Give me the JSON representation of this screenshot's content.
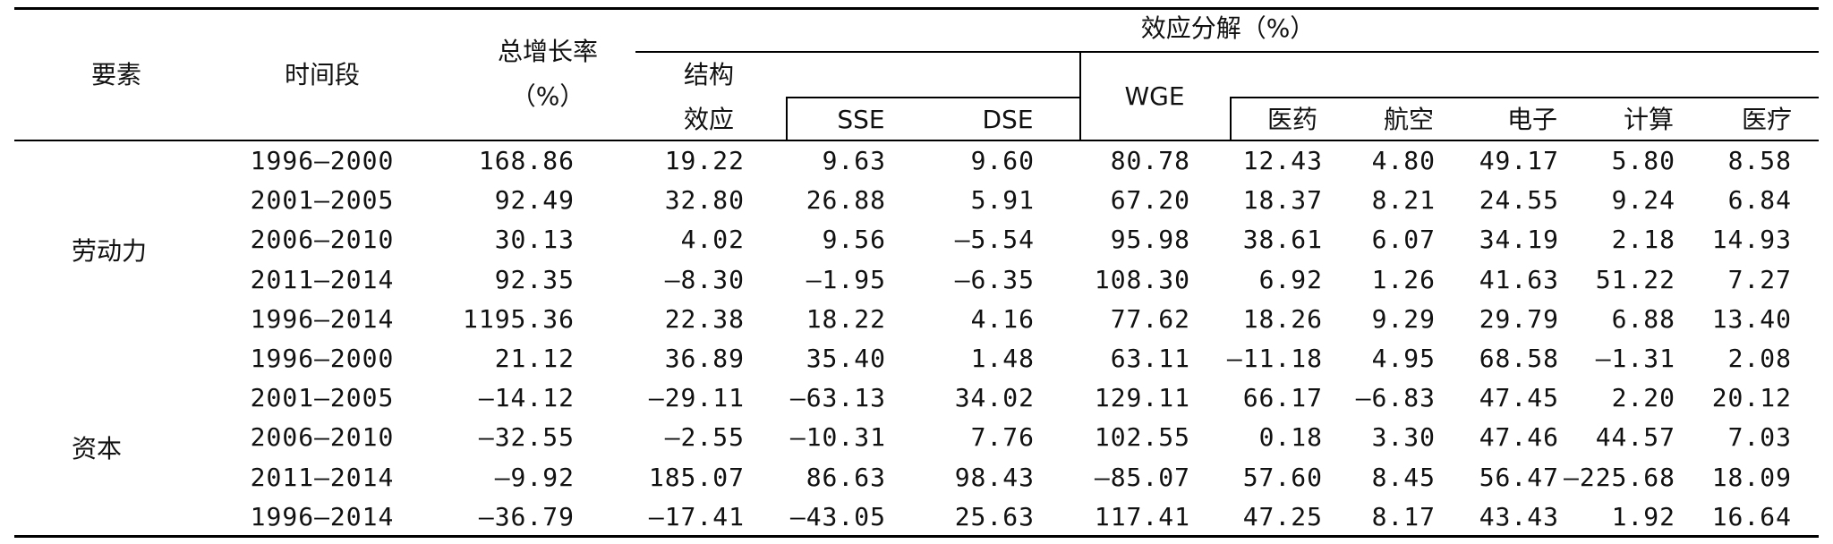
{
  "header": {
    "factor": "要素",
    "period": "时间段",
    "growth_line1": "总增长率",
    "growth_line2": "（%）",
    "decomposition": "效应分解（%）",
    "structure_line1": "结构",
    "structure_line2": "效应",
    "sse": "SSE",
    "dse": "DSE",
    "wge": "WGE",
    "pharma": "医药",
    "aviation": "航空",
    "electronics": "电子",
    "computing": "计算",
    "medical": "医疗"
  },
  "groups": [
    {
      "label": "劳动力",
      "rows": [
        [
          "1996—2000",
          "168.86",
          "19.22",
          "9.63",
          "9.60",
          "80.78",
          "12.43",
          "4.80",
          "49.17",
          "5.80",
          "8.58"
        ],
        [
          "2001—2005",
          "92.49",
          "32.80",
          "26.88",
          "5.91",
          "67.20",
          "18.37",
          "8.21",
          "24.55",
          "9.24",
          "6.84"
        ],
        [
          "2006—2010",
          "30.13",
          "4.02",
          "9.56",
          "—5.54",
          "95.98",
          "38.61",
          "6.07",
          "34.19",
          "2.18",
          "14.93"
        ],
        [
          "2011—2014",
          "92.35",
          "—8.30",
          "—1.95",
          "—6.35",
          "108.30",
          "6.92",
          "1.26",
          "41.63",
          "51.22",
          "7.27"
        ],
        [
          "1996—2014",
          "1195.36",
          "22.38",
          "18.22",
          "4.16",
          "77.62",
          "18.26",
          "9.29",
          "29.79",
          "6.88",
          "13.40"
        ]
      ]
    },
    {
      "label": "资本",
      "rows": [
        [
          "1996—2000",
          "21.12",
          "36.89",
          "35.40",
          "1.48",
          "63.11",
          "—11.18",
          "4.95",
          "68.58",
          "—1.31",
          "2.08"
        ],
        [
          "2001—2005",
          "—14.12",
          "—29.11",
          "—63.13",
          "34.02",
          "129.11",
          "66.17",
          "—6.83",
          "47.45",
          "2.20",
          "20.12"
        ],
        [
          "2006—2010",
          "—32.55",
          "—2.55",
          "—10.31",
          "7.76",
          "102.55",
          "0.18",
          "3.30",
          "47.46",
          "44.57",
          "7.03"
        ],
        [
          "2011—2014",
          "—9.92",
          "185.07",
          "86.63",
          "98.43",
          "—85.07",
          "57.60",
          "8.45",
          "56.47",
          "—225.68",
          "18.09"
        ],
        [
          "1996—2014",
          "—36.79",
          "—17.41",
          "—43.05",
          "25.63",
          "117.41",
          "47.25",
          "8.17",
          "43.43",
          "1.92",
          "16.64"
        ]
      ]
    }
  ]
}
